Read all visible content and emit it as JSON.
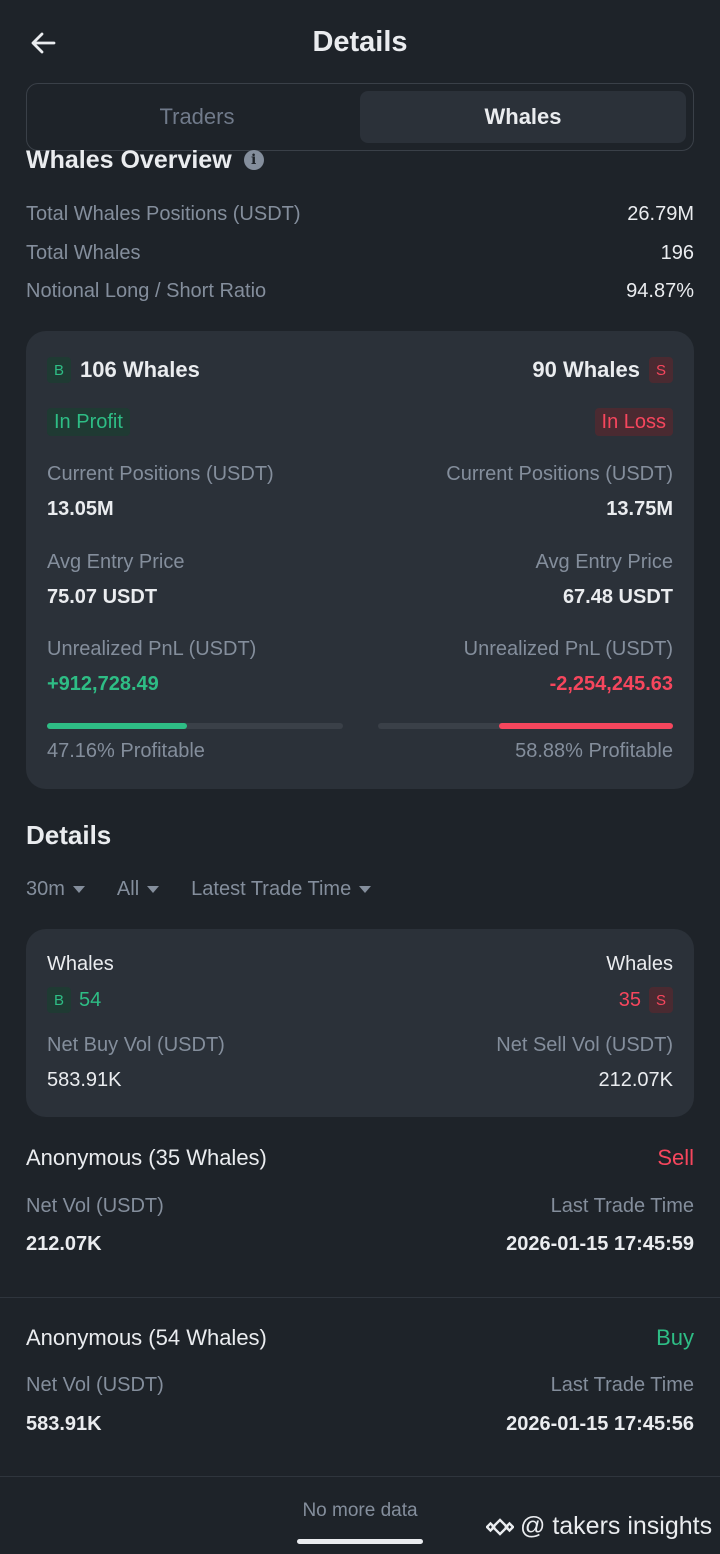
{
  "header": {
    "title": "Details"
  },
  "tabs": [
    {
      "label": "Traders"
    },
    {
      "label": "Whales"
    }
  ],
  "overview": {
    "title": "Whales Overview",
    "rows": [
      {
        "label": "Total Whales Positions (USDT)",
        "value": "26.79M"
      },
      {
        "label": "Total Whales",
        "value": "196"
      },
      {
        "label": "Notional Long / Short Ratio",
        "value": "94.87%"
      }
    ]
  },
  "summary": {
    "left": {
      "badge": "B",
      "count": "106 Whales",
      "status": "In Profit",
      "pos_label": "Current Positions (USDT)",
      "pos_value": "13.05M",
      "entry_label": "Avg Entry Price",
      "entry_value": "75.07 USDT",
      "pnl_label": "Unrealized PnL (USDT)",
      "pnl_value": "+912,728.49",
      "profitable": "47.16% Profitable",
      "profitable_fraction": 0.4716
    },
    "right": {
      "badge": "S",
      "count": "90 Whales",
      "status": "In Loss",
      "pos_label": "Current Positions (USDT)",
      "pos_value": "13.75M",
      "entry_label": "Avg Entry Price",
      "entry_value": "67.48 USDT",
      "pnl_label": "Unrealized PnL (USDT)",
      "pnl_value": "-2,254,245.63",
      "profitable": "58.88% Profitable",
      "profitable_fraction": 0.5888
    }
  },
  "details": {
    "title": "Details",
    "filters": [
      {
        "label": "30m"
      },
      {
        "label": "All"
      },
      {
        "label": "Latest Trade Time"
      }
    ],
    "vol_card": {
      "left": {
        "label": "Whales",
        "badge": "B",
        "count": "54",
        "vol_label": "Net Buy Vol (USDT)",
        "vol_value": "583.91K"
      },
      "right": {
        "label": "Whales",
        "badge": "S",
        "count": "35",
        "vol_label": "Net Sell Vol (USDT)",
        "vol_value": "212.07K"
      }
    },
    "trades": [
      {
        "name": "Anonymous (35 Whales)",
        "side": "Sell",
        "vol_label": "Net Vol (USDT)",
        "vol_value": "212.07K",
        "time_label": "Last Trade Time",
        "time_value": "2026-01-15 17:45:59"
      },
      {
        "name": "Anonymous (54 Whales)",
        "side": "Buy",
        "vol_label": "Net Vol (USDT)",
        "vol_value": "583.91K",
        "time_label": "Last Trade Time",
        "time_value": "2026-01-15 17:45:56"
      }
    ]
  },
  "footer": {
    "no_more": "No more data"
  },
  "watermark": {
    "text": "@ takers insights"
  },
  "colors": {
    "buy": "#2ebd85",
    "sell": "#f6465d",
    "bg": "#1e2329",
    "card": "#2b3139"
  }
}
